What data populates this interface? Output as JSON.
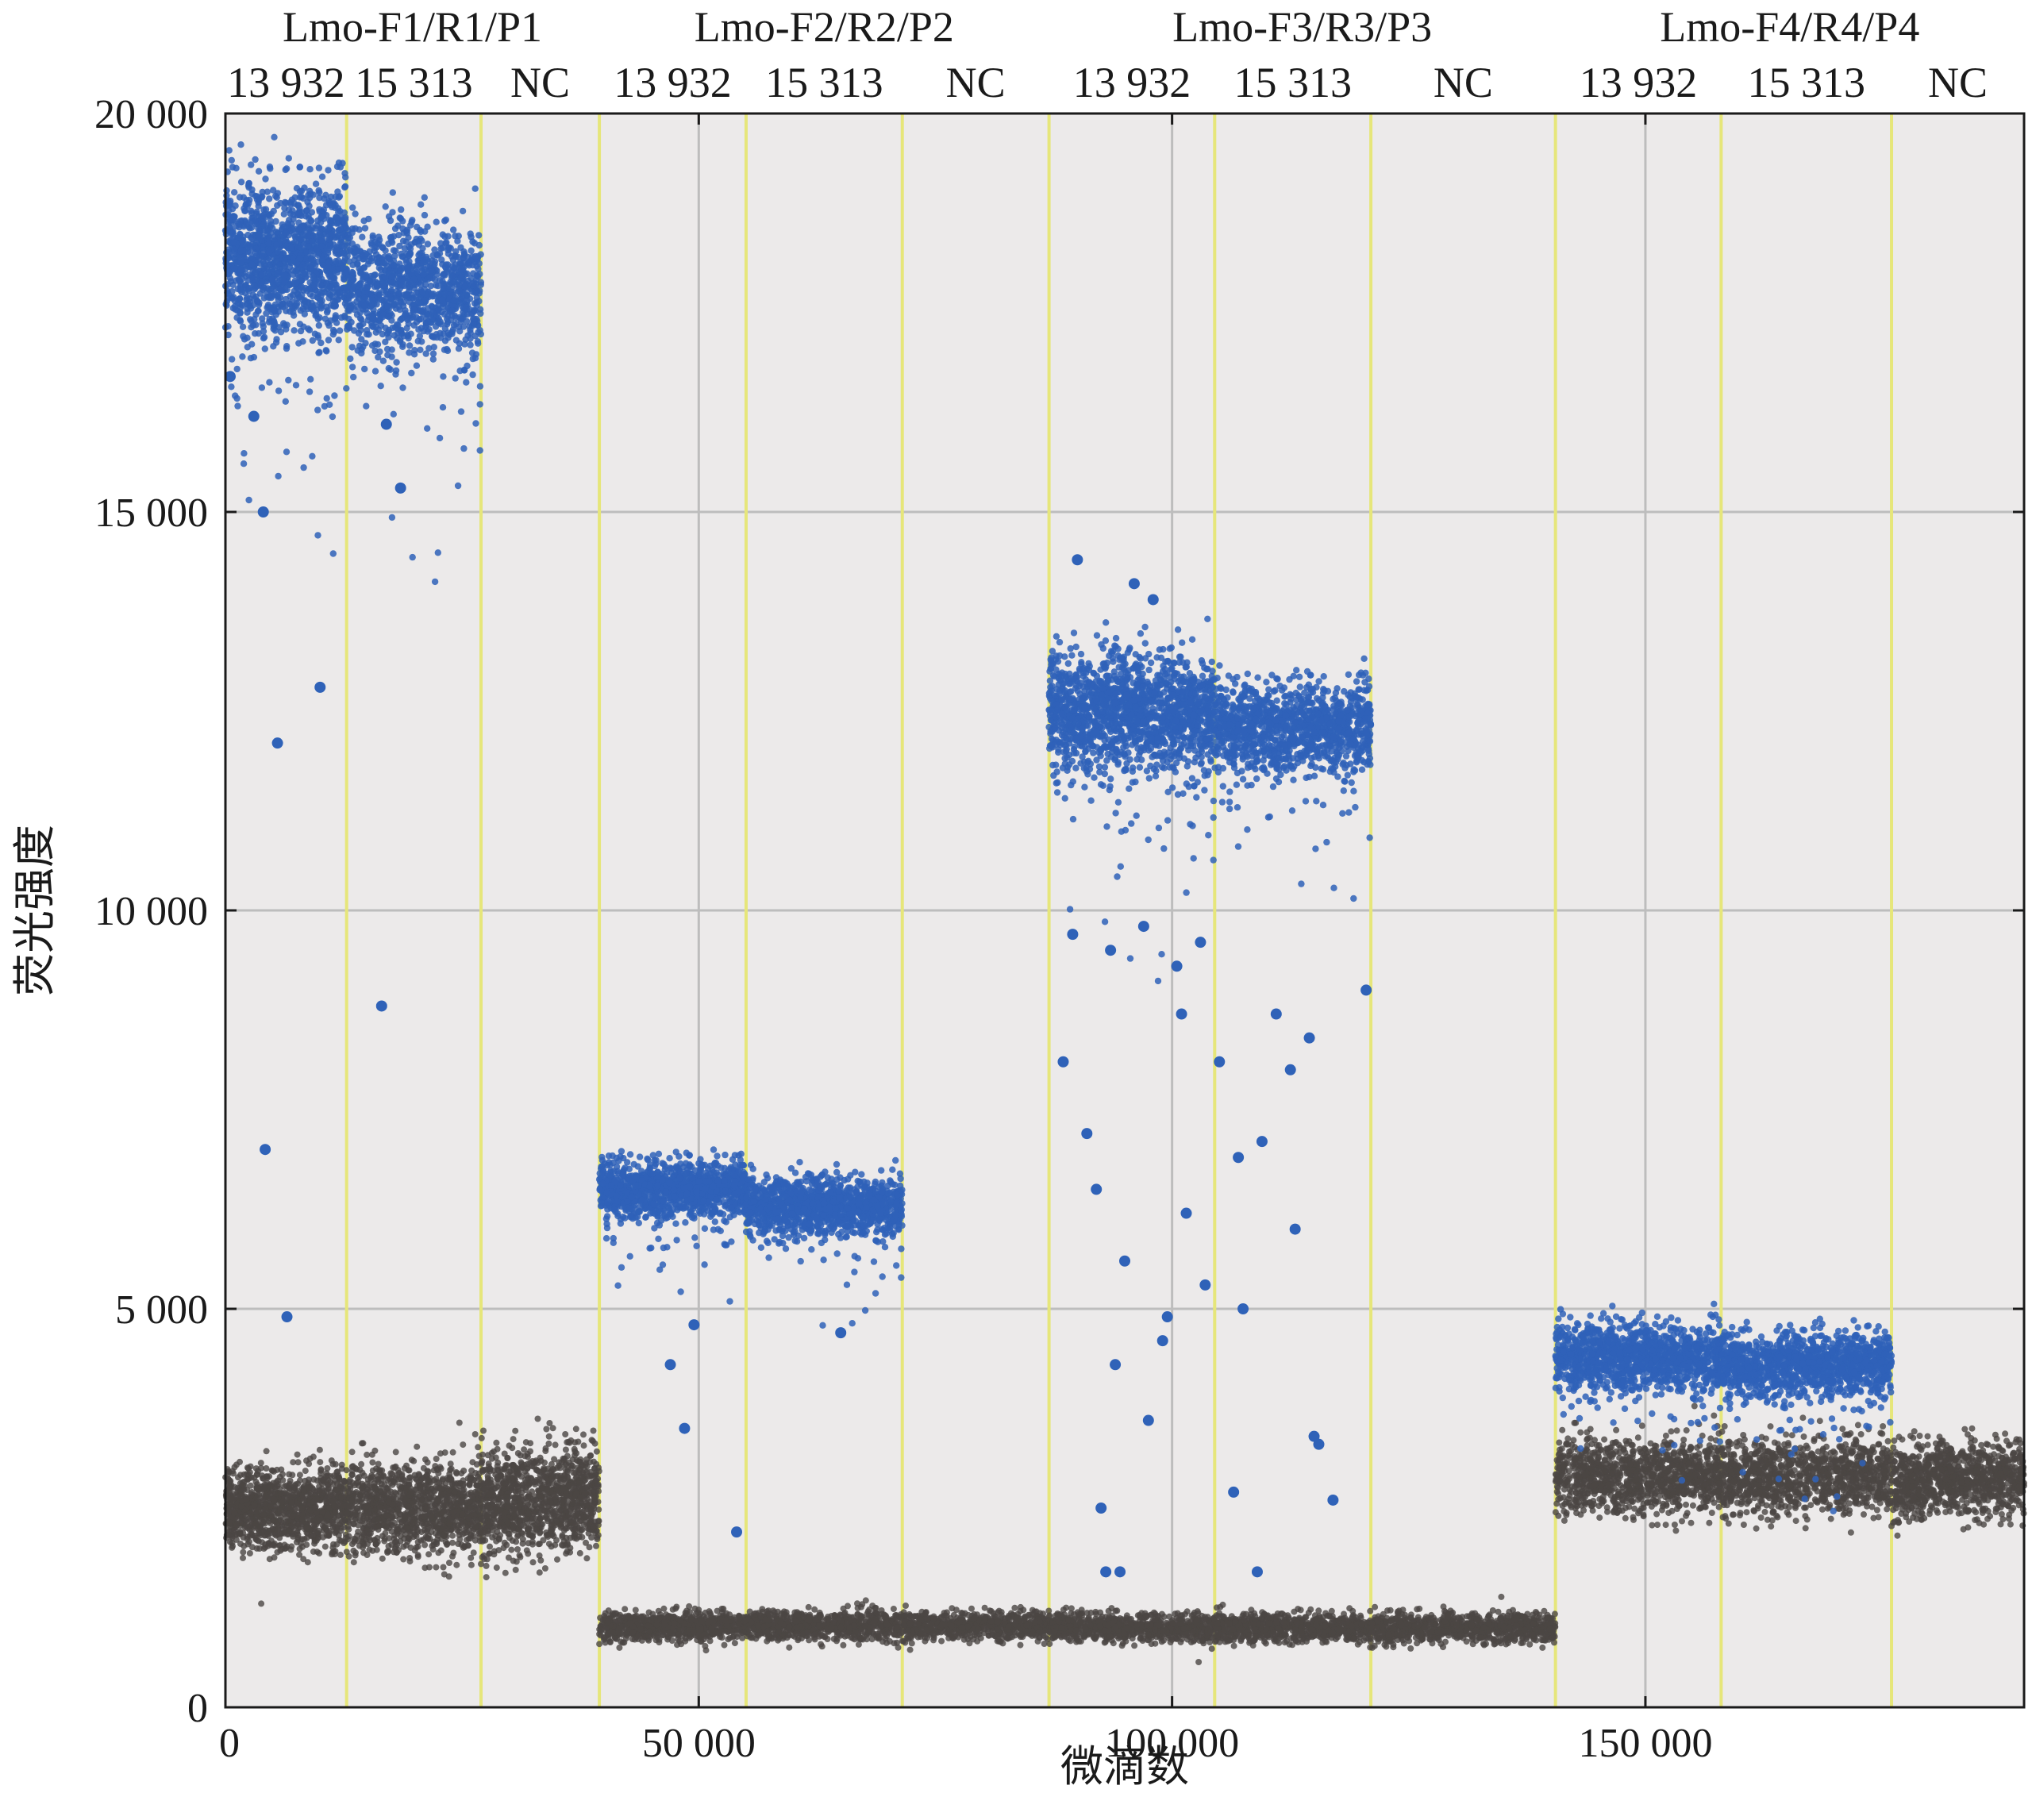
{
  "chart_data": {
    "type": "scatter",
    "title": "",
    "xlabel": "微滴数",
    "ylabel": "荧光强度",
    "xlim": [
      0,
      190000
    ],
    "ylim": [
      0,
      20000
    ],
    "x_ticks": [
      0,
      50000,
      100000,
      150000
    ],
    "x_tick_labels": [
      "0",
      "50 000",
      "100 000",
      "150 000"
    ],
    "y_ticks": [
      0,
      5000,
      10000,
      15000,
      20000
    ],
    "y_tick_labels": [
      "0",
      "5 000",
      "10 000",
      "15 000",
      "20 000"
    ],
    "grid": true,
    "groups": [
      {
        "name": "Lmo-F1/R1/P1",
        "wells": [
          "13 932",
          "15 313",
          "NC"
        ]
      },
      {
        "name": "Lmo-F2/R2/P2",
        "wells": [
          "13 932",
          "15 313",
          "NC"
        ]
      },
      {
        "name": "Lmo-F3/R3/P3",
        "wells": [
          "13 932",
          "15 313",
          "NC"
        ]
      },
      {
        "name": "Lmo-F4/R4/P4",
        "wells": [
          "13 932",
          "15 313",
          "NC"
        ]
      }
    ],
    "well_boundaries_x": [
      12800,
      27000,
      39500,
      55000,
      71500,
      87000,
      104500,
      121000,
      140500,
      158000,
      176000
    ],
    "clusters": [
      {
        "series": "positive",
        "x_range": [
          0,
          12800
        ],
        "center": 18200,
        "spread": 450,
        "count": 1400
      },
      {
        "series": "positive",
        "x_range": [
          12800,
          27000
        ],
        "center": 17800,
        "spread": 380,
        "count": 1100
      },
      {
        "series": "negative",
        "x_range": [
          0,
          12800
        ],
        "center": 2500,
        "spread": 250,
        "count": 1100
      },
      {
        "series": "negative",
        "x_range": [
          12800,
          27000
        ],
        "center": 2500,
        "spread": 280,
        "count": 1100
      },
      {
        "series": "negative",
        "x_range": [
          27000,
          39500
        ],
        "center": 2600,
        "spread": 320,
        "count": 1100
      },
      {
        "series": "positive",
        "x_range": [
          39500,
          55000
        ],
        "center": 6500,
        "spread": 170,
        "count": 1200
      },
      {
        "series": "positive",
        "x_range": [
          55000,
          71500
        ],
        "center": 6300,
        "spread": 170,
        "count": 1200
      },
      {
        "series": "negative",
        "x_range": [
          39500,
          87000
        ],
        "center": 1020,
        "spread": 90,
        "count": 2200
      },
      {
        "series": "positive",
        "x_range": [
          87000,
          104500
        ],
        "center": 12500,
        "spread": 350,
        "count": 1600
      },
      {
        "series": "positive",
        "x_range": [
          104500,
          121000
        ],
        "center": 12300,
        "spread": 260,
        "count": 1200
      },
      {
        "series": "negative",
        "x_range": [
          87000,
          140500
        ],
        "center": 1000,
        "spread": 90,
        "count": 2400
      },
      {
        "series": "positive",
        "x_range": [
          140500,
          158000
        ],
        "center": 4400,
        "spread": 200,
        "count": 1200
      },
      {
        "series": "positive",
        "x_range": [
          158000,
          176000
        ],
        "center": 4300,
        "spread": 190,
        "count": 1200
      },
      {
        "series": "negative",
        "x_range": [
          140500,
          158000
        ],
        "center": 2900,
        "spread": 230,
        "count": 1100
      },
      {
        "series": "negative",
        "x_range": [
          158000,
          176000
        ],
        "center": 2900,
        "spread": 230,
        "count": 1100
      },
      {
        "series": "negative",
        "x_range": [
          176000,
          190000
        ],
        "center": 2850,
        "spread": 230,
        "count": 1000
      }
    ],
    "outliers_positive": [
      [
        500,
        16700
      ],
      [
        4000,
        15000
      ],
      [
        5500,
        12100
      ],
      [
        10000,
        12800
      ],
      [
        6500,
        4900
      ],
      [
        4200,
        7000
      ],
      [
        16500,
        8800
      ],
      [
        18500,
        15300
      ],
      [
        17000,
        16100
      ],
      [
        3000,
        16200
      ],
      [
        47000,
        4300
      ],
      [
        48500,
        3500
      ],
      [
        49500,
        4800
      ],
      [
        54000,
        2200
      ],
      [
        65000,
        4700
      ],
      [
        88500,
        8100
      ],
      [
        90000,
        14400
      ],
      [
        91000,
        7200
      ],
      [
        92000,
        6500
      ],
      [
        92500,
        2500
      ],
      [
        93000,
        1700
      ],
      [
        94000,
        4300
      ],
      [
        94500,
        1700
      ],
      [
        95000,
        5600
      ],
      [
        96000,
        14100
      ],
      [
        97500,
        3600
      ],
      [
        98000,
        13900
      ],
      [
        99000,
        4600
      ],
      [
        99500,
        4900
      ],
      [
        101000,
        8700
      ],
      [
        101500,
        6200
      ],
      [
        103500,
        5300
      ],
      [
        105000,
        8100
      ],
      [
        106500,
        2700
      ],
      [
        107000,
        6900
      ],
      [
        107500,
        5000
      ],
      [
        109500,
        7100
      ],
      [
        109000,
        1700
      ],
      [
        111000,
        8700
      ],
      [
        112500,
        8000
      ],
      [
        113000,
        6000
      ],
      [
        114500,
        8400
      ],
      [
        115000,
        3400
      ],
      [
        115500,
        3300
      ],
      [
        117000,
        2600
      ],
      [
        120500,
        9000
      ],
      [
        89500,
        9700
      ],
      [
        93500,
        9500
      ],
      [
        97000,
        9800
      ],
      [
        100500,
        9300
      ],
      [
        103000,
        9600
      ]
    ],
    "series": [
      {
        "name": "",
        "color": "#2f62b8"
      },
      {
        "name": "",
        "color": "#4b4644"
      }
    ],
    "colors": {
      "plot_background": "#eceaea",
      "gridline": "#bdbdbd",
      "well_divider": "#e6e67a",
      "positive": "#2f62b8",
      "positive_core": "#3d5fa8",
      "negative": "#4b4644"
    }
  }
}
